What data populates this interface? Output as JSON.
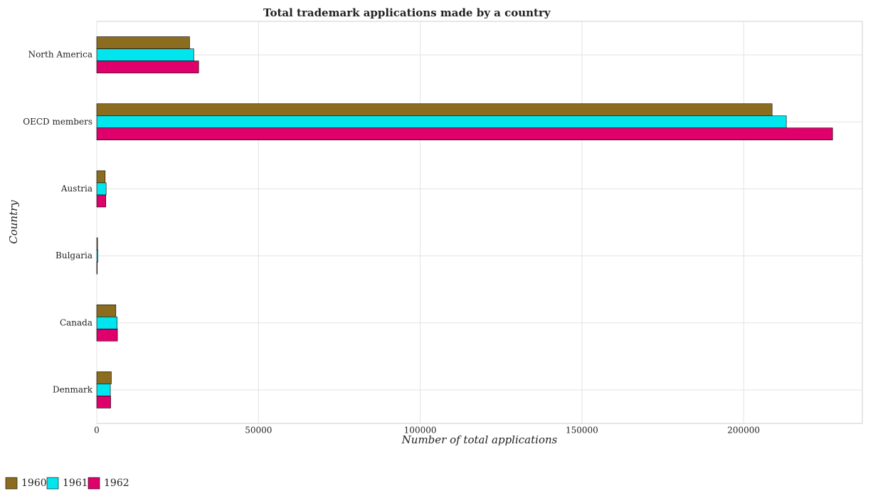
{
  "chart_data": {
    "type": "hbar",
    "title": "Total trademark applications made by a country",
    "xlabel": "Number of total applications",
    "ylabel": "Country",
    "categories": [
      "North America",
      "OECD members",
      "Austria",
      "Bulgaria",
      "Canada",
      "Denmark"
    ],
    "series": [
      {
        "name": "1960",
        "color": "#8c6d1f",
        "values": [
          28700,
          208800,
          2600,
          250,
          5900,
          4500
        ]
      },
      {
        "name": "1961",
        "color": "#00e5ee",
        "values": [
          30000,
          213200,
          2900,
          350,
          6300,
          4200
        ]
      },
      {
        "name": "1962",
        "color": "#e0006b",
        "values": [
          31500,
          227500,
          2800,
          150,
          6400,
          4300
        ]
      }
    ],
    "xlim": [
      0,
      236700
    ],
    "xticks": [
      0,
      50000,
      100000,
      150000,
      200000
    ],
    "grid": true,
    "legend": "bottom-left"
  }
}
